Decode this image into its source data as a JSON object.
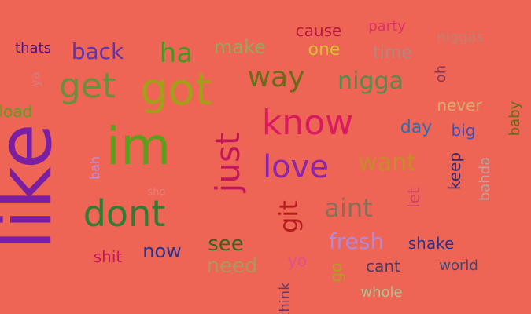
{
  "words": [
    {
      "text": "like",
      "color": "#7b1fa2"
    },
    {
      "text": "im",
      "color": "#5e9e1a"
    },
    {
      "text": "got",
      "color": "#a2a019"
    },
    {
      "text": "dont",
      "color": "#2e7d32"
    },
    {
      "text": "know",
      "color": "#d81b60"
    },
    {
      "text": "get",
      "color": "#6b8f3a"
    },
    {
      "text": "just",
      "color": "#c2185b"
    },
    {
      "text": "love",
      "color": "#8e24aa"
    },
    {
      "text": "way",
      "color": "#6b6b18"
    },
    {
      "text": "nigga",
      "color": "#558b4a"
    },
    {
      "text": "git",
      "color": "#b71c1c"
    },
    {
      "text": "aint",
      "color": "#8a6e5a"
    },
    {
      "text": "want",
      "color": "#c98a2a"
    },
    {
      "text": "back",
      "color": "#5e35b1"
    },
    {
      "text": "ha",
      "color": "#3f9a1e"
    },
    {
      "text": "fresh",
      "color": "#b388d6"
    },
    {
      "text": "see",
      "color": "#33691e"
    },
    {
      "text": "need",
      "color": "#b0965a"
    },
    {
      "text": "now",
      "color": "#283593"
    },
    {
      "text": "make",
      "color": "#97a85a"
    },
    {
      "text": "cause",
      "color": "#b8183c"
    },
    {
      "text": "one",
      "color": "#d4c22a"
    },
    {
      "text": "time",
      "color": "#b08a80"
    },
    {
      "text": "party",
      "color": "#e0306a"
    },
    {
      "text": "niggas",
      "color": "#c08070"
    },
    {
      "text": "day",
      "color": "#2e6cb4"
    },
    {
      "text": "never",
      "color": "#d4b06a"
    },
    {
      "text": "big",
      "color": "#3f51b5"
    },
    {
      "text": "shake",
      "color": "#283593"
    },
    {
      "text": "world",
      "color": "#3a4a7a"
    },
    {
      "text": "cant",
      "color": "#4a3a6a"
    },
    {
      "text": "whole",
      "color": "#b0c090"
    },
    {
      "text": "yo",
      "color": "#e05090"
    },
    {
      "text": "go",
      "color": "#b0a020"
    },
    {
      "text": "shit",
      "color": "#c2185b"
    },
    {
      "text": "thats",
      "color": "#4a148c"
    },
    {
      "text": "load",
      "color": "#5e9e1a"
    },
    {
      "text": "oh",
      "color": "#8a3a5a"
    },
    {
      "text": "baby",
      "color": "#6b6b18"
    },
    {
      "text": "keep",
      "color": "#3a2a6a"
    },
    {
      "text": "bahda",
      "color": "#c0a0a0"
    },
    {
      "text": "let",
      "color": "#d04060"
    },
    {
      "text": "bah",
      "color": "#c090e0"
    },
    {
      "text": "ya",
      "color": "#d08080"
    },
    {
      "text": "think",
      "color": "#6a3a6a"
    },
    {
      "text": "sho",
      "color": "#e88070"
    }
  ]
}
